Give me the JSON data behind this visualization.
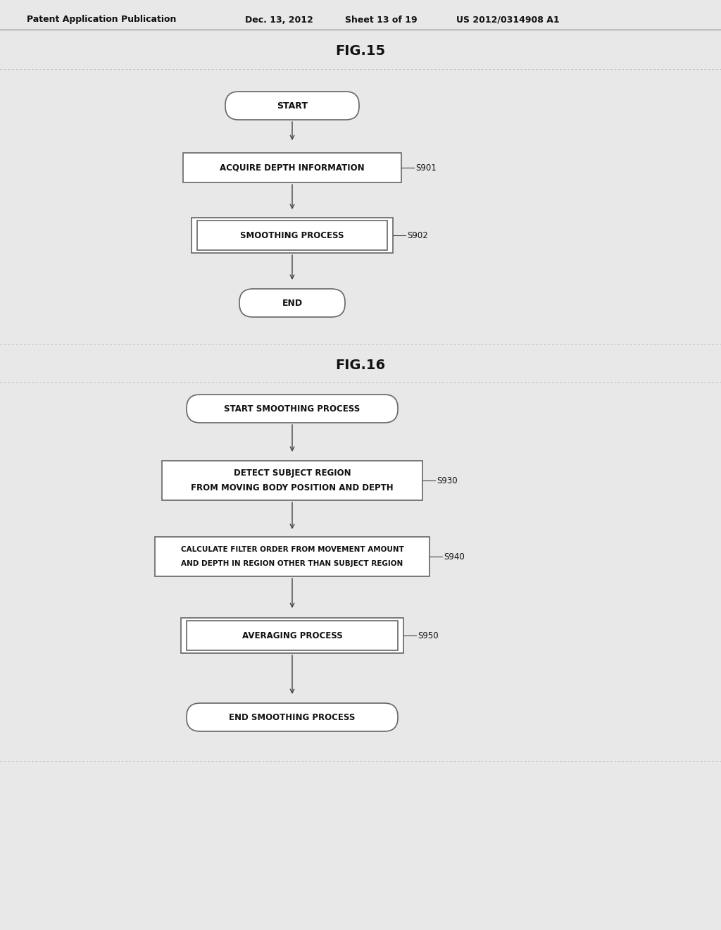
{
  "background_color": "#f0f0f0",
  "page_bg": "#e8e8e8",
  "header_text": "Patent Application Publication",
  "header_date": "Dec. 13, 2012",
  "header_sheet": "Sheet 13 of 19",
  "header_patent": "US 2012/0314908 A1",
  "fig15_title": "FIG.15",
  "fig16_title": "FIG.16",
  "line_color": "#444444",
  "text_color": "#111111",
  "box_edge_color": "#666666",
  "font_size_box": 8.5,
  "font_size_label": 8.5,
  "font_size_header": 9,
  "font_size_title": 13
}
